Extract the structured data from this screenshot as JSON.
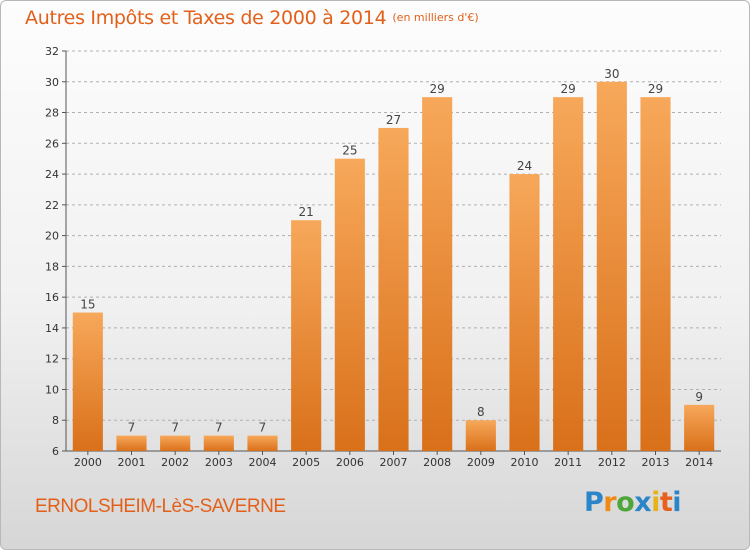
{
  "title": "Autres Impôts et Taxes de 2000 à 2014",
  "unit_note": "(en milliers d'€)",
  "commune": "ERNOLSHEIM-LèS-SAVERNE",
  "logo": {
    "text": "Proxiti",
    "letters": [
      "P",
      "r",
      "o",
      "x",
      "i",
      "t",
      "i"
    ],
    "colors": [
      "#2a86c9",
      "#f08a16",
      "#4ea63a",
      "#2a86c9",
      "#e8b21c",
      "#e8601b",
      "#2a86c9"
    ]
  },
  "colors": {
    "title": "#e3601a",
    "bar_light": "#f7a85a",
    "bar_dark": "#d9701a",
    "grid": "#b0b0b0"
  },
  "chart_data": {
    "type": "bar",
    "title": "Autres Impôts et Taxes de 2000 à 2014",
    "subtitle": "(en milliers d'€)",
    "categories": [
      "2000",
      "2001",
      "2002",
      "2003",
      "2004",
      "2005",
      "2006",
      "2007",
      "2008",
      "2009",
      "2010",
      "2011",
      "2012",
      "2013",
      "2014"
    ],
    "values": [
      15,
      7,
      7,
      7,
      7,
      21,
      25,
      27,
      29,
      8,
      24,
      29,
      30,
      29,
      9
    ],
    "ylim": [
      6,
      32
    ],
    "yticks": [
      6,
      8,
      10,
      12,
      14,
      16,
      18,
      20,
      22,
      24,
      26,
      28,
      30,
      32
    ],
    "grid": "horizontal dashed",
    "data_labels": true,
    "legend": "none"
  }
}
